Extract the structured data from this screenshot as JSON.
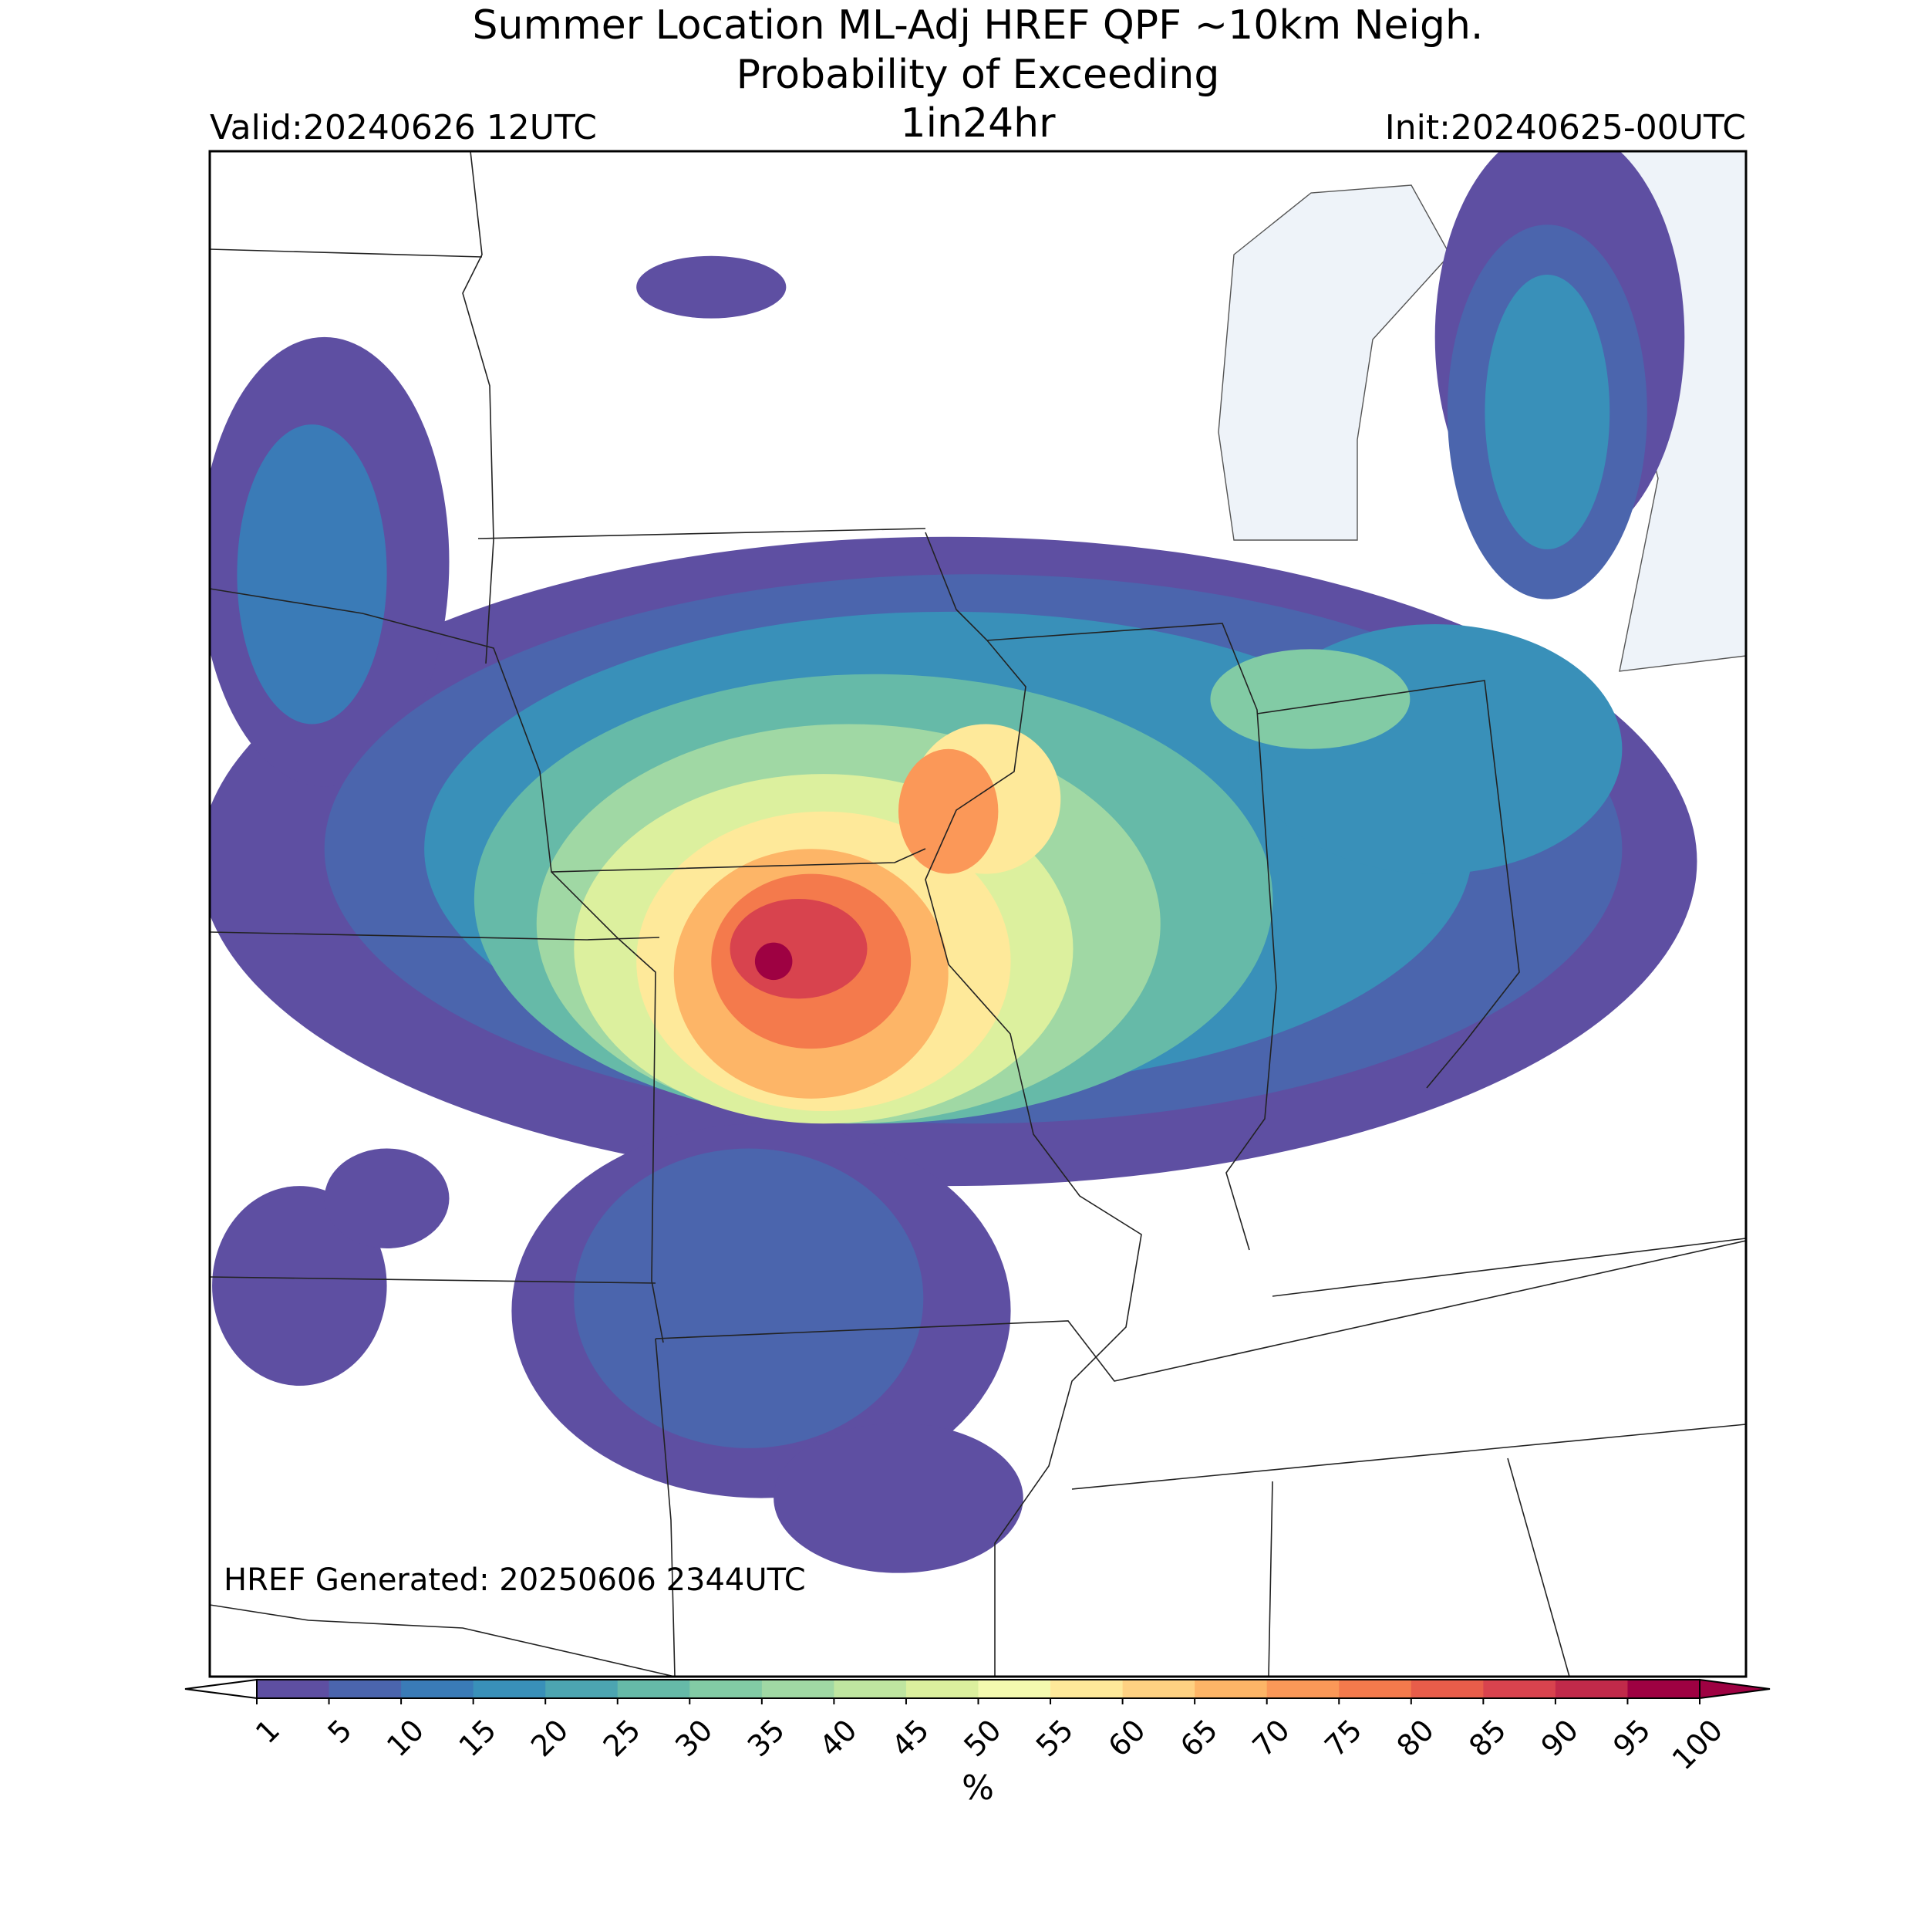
{
  "header": {
    "title_lines": [
      "Summer Location ML-Adj HREF QPF ~10km Neigh.",
      "Probability of Exceeding",
      "1in24hr"
    ],
    "valid": "Valid:20240626 12UTC",
    "init": "Init:20240625-00UTC"
  },
  "footer_note": "HREF Generated: 20250606 2344UTC",
  "colorbar": {
    "ticks": [
      1,
      5,
      10,
      15,
      20,
      25,
      30,
      35,
      40,
      45,
      50,
      55,
      60,
      65,
      70,
      75,
      80,
      85,
      90,
      95,
      100
    ],
    "colors": [
      "#5e4fa2",
      "#4b65ad",
      "#3a7bb7",
      "#3990b9",
      "#4ca5b1",
      "#66baa8",
      "#82cba5",
      "#a0d8a4",
      "#bfe5a0",
      "#dcf09e",
      "#f4fab0",
      "#fee99a",
      "#fed182",
      "#fdb567",
      "#fb9858",
      "#f47a4c",
      "#e85d4a",
      "#d8434e",
      "#c12a4a",
      "#9e0142"
    ],
    "under_color": "#ffffff",
    "over_color": "#9e0142",
    "label": "%"
  }
}
